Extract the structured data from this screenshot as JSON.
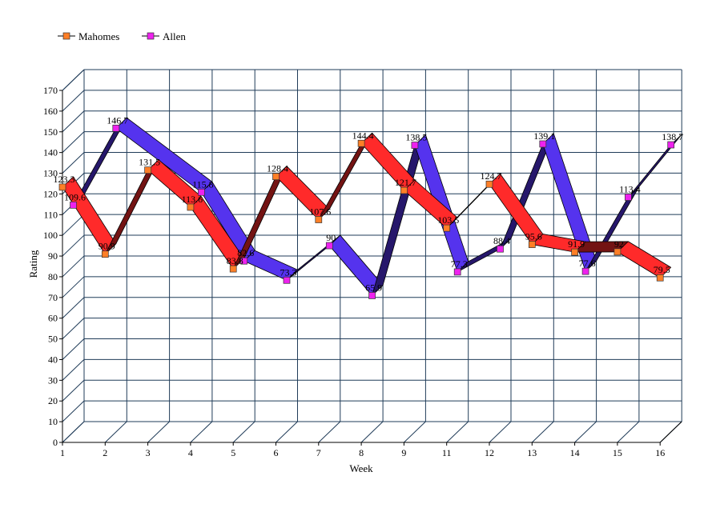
{
  "chart_data": {
    "type": "line",
    "xlabel": "Week",
    "ylabel": "Rating",
    "ylim": [
      0,
      170
    ],
    "ystep": 10,
    "grid": true,
    "legend_position": "top-left",
    "categories": [
      "1",
      "2",
      "3",
      "4",
      "5",
      "6",
      "7",
      "8",
      "9",
      "11",
      "12",
      "13",
      "14",
      "15",
      "16"
    ],
    "series": [
      {
        "name": "Mahomes",
        "color": "#ff2a2a",
        "marker_color": "#ff7f27",
        "values": [
          123.3,
          90.9,
          131.5,
          113.6,
          83.8,
          128.4,
          107.6,
          144.4,
          121.7,
          103.5,
          124.7,
          95.6,
          91.9,
          92,
          79.5
        ]
      },
      {
        "name": "Allen",
        "color": "#5533ee",
        "marker_color": "#ee22ee",
        "values": [
          109.6,
          146.7,
          null,
          115.8,
          82.6,
          73.3,
          90,
          65.9,
          138.5,
          77.3,
          88.4,
          139.1,
          77.6,
          113.4,
          138.7
        ]
      }
    ]
  }
}
